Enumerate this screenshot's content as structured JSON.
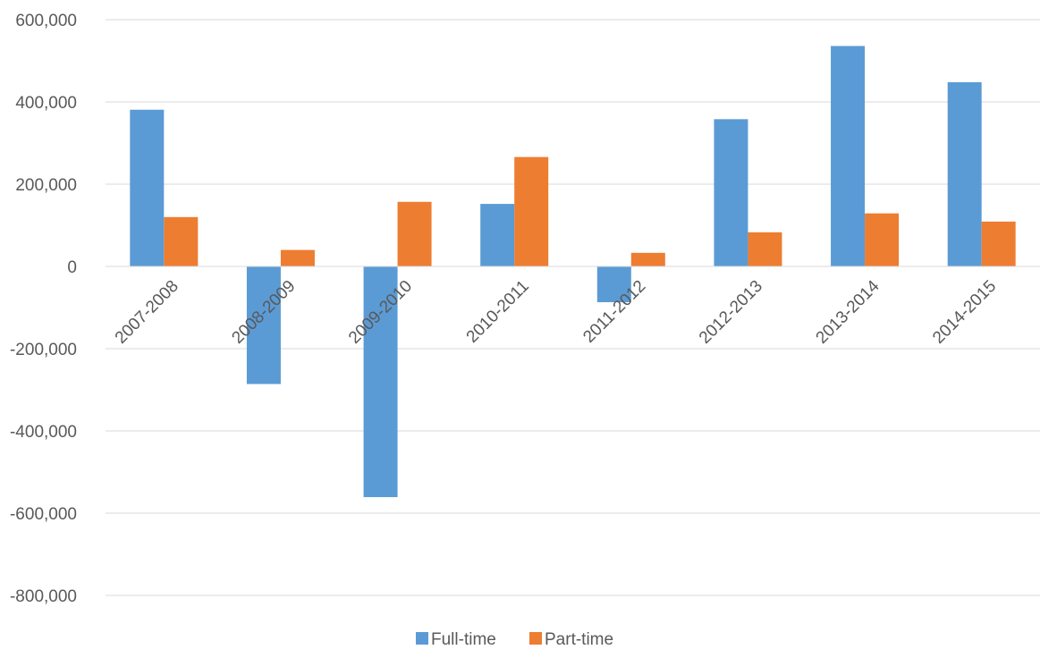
{
  "chart_data": {
    "type": "bar",
    "categories": [
      "2007-2008",
      "2008-2009",
      "2009-2010",
      "2010-2011",
      "2011-2012",
      "2012-2013",
      "2013-2014",
      "2014-2015"
    ],
    "series": [
      {
        "name": "Full-time",
        "color": "#5b9bd5",
        "values": [
          381000,
          -286000,
          -561000,
          152000,
          -87000,
          358000,
          536000,
          448000
        ]
      },
      {
        "name": "Part-time",
        "color": "#ed7d31",
        "values": [
          120000,
          40000,
          157000,
          266000,
          33000,
          83000,
          129000,
          109000
        ]
      }
    ],
    "ylim": [
      -800000,
      600000
    ],
    "yticks": [
      600000,
      400000,
      200000,
      0,
      -200000,
      -400000,
      -600000,
      -800000
    ],
    "ytick_labels": [
      "600,000",
      "400,000",
      "200,000",
      "0",
      "-200,000",
      "-400,000",
      "-600,000",
      "-800,000"
    ],
    "grid": true,
    "legend_position": "bottom",
    "title": "",
    "xlabel": "",
    "ylabel": ""
  }
}
